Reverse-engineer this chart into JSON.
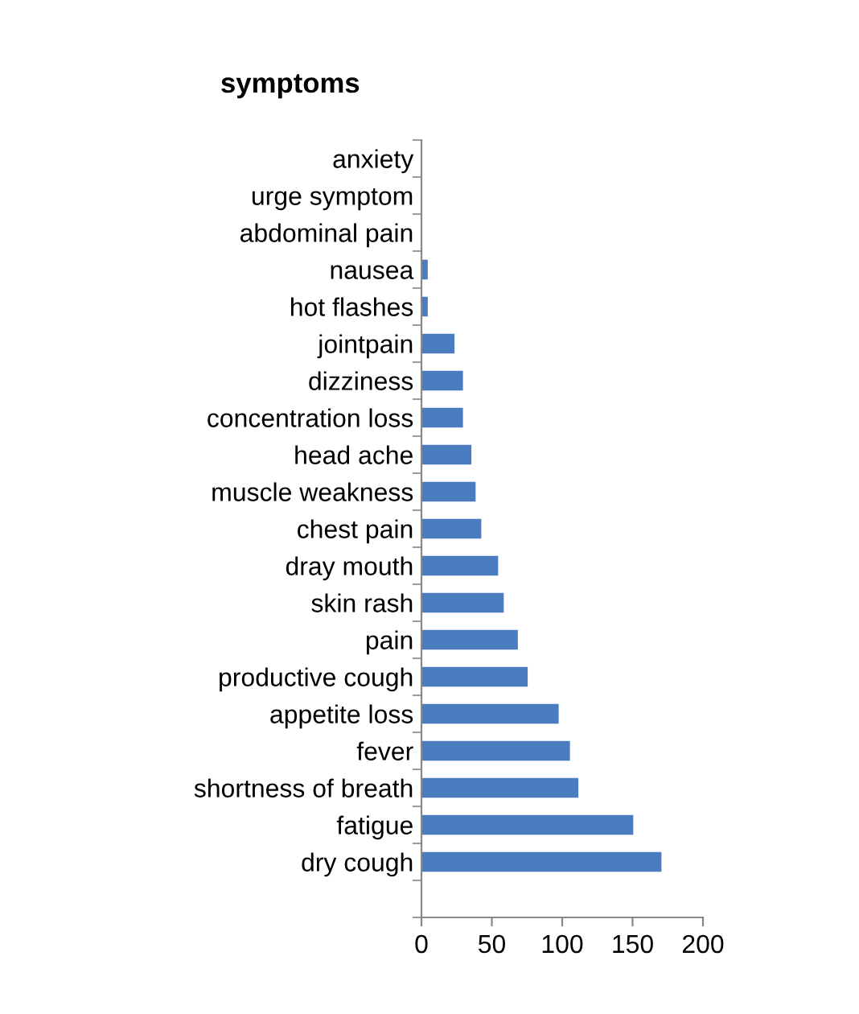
{
  "chart_data": {
    "type": "bar",
    "orientation": "horizontal",
    "title": "symptoms",
    "categories": [
      "anxiety",
      "urge symptom",
      "abdominal pain",
      "nausea",
      "hot flashes",
      "jointpain",
      "dizziness",
      "concentration loss",
      "head ache",
      "muscle weakness",
      "chest pain",
      "dray mouth",
      "skin rash",
      "pain",
      "productive cough",
      "appetite loss",
      "fever",
      "shortness of breath",
      "fatigue",
      "dry cough",
      null
    ],
    "values": [
      0,
      0,
      0,
      4,
      4,
      23,
      29,
      29,
      35,
      38,
      42,
      54,
      58,
      68,
      75,
      97,
      105,
      111,
      150,
      170,
      null
    ],
    "color": "#4a7cc0",
    "xlim": [
      0,
      200
    ],
    "xticks": [
      0,
      50,
      100,
      150,
      200
    ],
    "grid": false,
    "legend": false
  }
}
